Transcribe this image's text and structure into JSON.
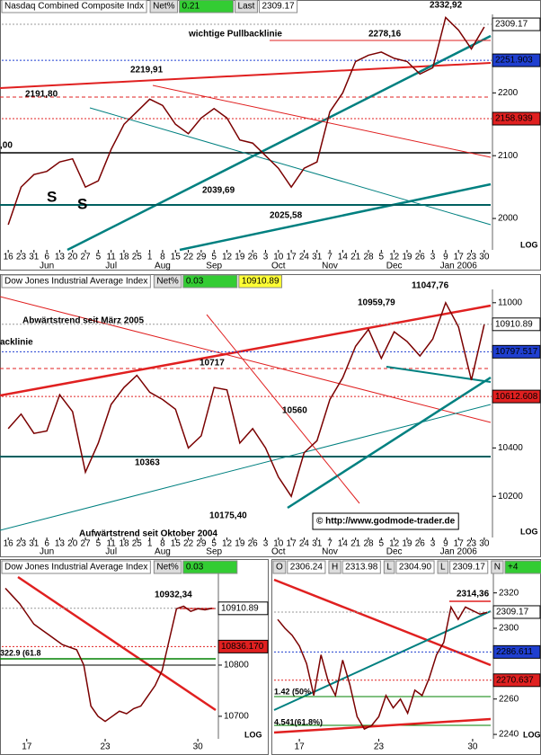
{
  "chart_data": [
    {
      "type": "line",
      "header": [
        "Nasdaq Combined Composite Indx",
        "Net%",
        "0.21",
        "Last",
        "2309.17"
      ],
      "header_colors": [
        "#ffffff",
        "#dddddd",
        "#33cc33",
        "#dddddd",
        "#ffffff"
      ],
      "categories": [
        "16",
        "23",
        "31",
        "6",
        "13",
        "20",
        "27",
        "5",
        "11",
        "18",
        "25",
        "1",
        "8",
        "15",
        "22",
        "29",
        "5",
        "12",
        "19",
        "26",
        "3",
        "10",
        "17",
        "24",
        "31",
        "7",
        "14",
        "21",
        "28",
        "5",
        "12",
        "19",
        "26",
        "3",
        "9",
        "17",
        "23",
        "30"
      ],
      "months": [
        null,
        null,
        null,
        "Jun",
        null,
        null,
        null,
        null,
        "Jul",
        null,
        null,
        null,
        "Aug",
        null,
        null,
        null,
        "Sep",
        null,
        null,
        null,
        null,
        "Oct",
        null,
        null,
        null,
        "Nov",
        null,
        null,
        null,
        null,
        "Dec",
        null,
        null,
        null,
        null,
        "Jan 2006",
        null,
        null
      ],
      "series": [
        {
          "color": "#7a0000",
          "values": [
            1990,
            2050,
            2070,
            2075,
            2090,
            2095,
            2050,
            2060,
            2110,
            2150,
            2170,
            2190,
            2180,
            2150,
            2135,
            2160,
            2175,
            2160,
            2125,
            2120,
            2100,
            2080,
            2050,
            2080,
            2090,
            2170,
            2200,
            2250,
            2260,
            2265,
            2255,
            2250,
            2230,
            2240,
            2320,
            2300,
            2270,
            2305
          ]
        }
      ],
      "ylim": [
        1950,
        2325
      ],
      "yticks": [
        2000,
        2100,
        2200
      ],
      "price_labels": [
        {
          "value": 2309.17,
          "color": "#ffffff"
        },
        {
          "value": 2251.903,
          "color": "#1f3fd0"
        },
        {
          "value": 2158.939,
          "color": "#e02020"
        }
      ],
      "annotations": [
        "2332,92",
        "2278,16",
        "wichtige Pullbacklinie",
        "2219,91",
        "2191,80",
        ",00",
        "S",
        "S",
        "2039,69",
        "2025,58",
        "LOG"
      ]
    },
    {
      "type": "line",
      "header": [
        "Dow Jones Industrial Average Index",
        "Net%",
        "0.03",
        "10910.89"
      ],
      "header_colors": [
        "#ffffff",
        "#dddddd",
        "#33cc33",
        "#ffff33"
      ],
      "categories": [
        "16",
        "23",
        "31",
        "6",
        "13",
        "20",
        "27",
        "5",
        "11",
        "18",
        "25",
        "1",
        "8",
        "15",
        "22",
        "29",
        "5",
        "12",
        "19",
        "26",
        "3",
        "10",
        "17",
        "24",
        "31",
        "7",
        "14",
        "21",
        "28",
        "5",
        "12",
        "19",
        "26",
        "3",
        "9",
        "17",
        "23",
        "30"
      ],
      "months": [
        null,
        null,
        null,
        "Jun",
        null,
        null,
        null,
        null,
        "Jul",
        null,
        null,
        null,
        "Aug",
        null,
        null,
        null,
        "Sep",
        null,
        null,
        null,
        null,
        "Oct",
        null,
        null,
        null,
        "Nov",
        null,
        null,
        null,
        null,
        "Dec",
        null,
        null,
        null,
        null,
        "Jan 2006",
        null,
        null
      ],
      "series": [
        {
          "color": "#7a0000",
          "values": [
            10480,
            10540,
            10460,
            10470,
            10620,
            10550,
            10300,
            10420,
            10580,
            10650,
            10700,
            10630,
            10600,
            10560,
            10400,
            10450,
            10650,
            10640,
            10420,
            10480,
            10400,
            10280,
            10200,
            10380,
            10430,
            10600,
            10690,
            10820,
            10890,
            10770,
            10880,
            10840,
            10780,
            10850,
            11000,
            10900,
            10680,
            10910
          ]
        }
      ],
      "ylim": [
        10030,
        11055
      ],
      "yticks": [
        10200,
        10400,
        11000
      ],
      "price_labels": [
        {
          "value": 10910.89,
          "color": "#ffffff"
        },
        {
          "value": 10797.517,
          "color": "#1f3fd0"
        },
        {
          "value": 10612.608,
          "color": "#e02020"
        }
      ],
      "annotations": [
        "Abwärtstrend seit März 2005",
        "acklinie",
        "10959,79",
        "11047,76",
        "10717",
        "10560",
        "10363",
        "10175,40",
        "Aufwärtstrend seit Oktober 2004",
        "© http://www.godmode-trader.de",
        "LOG"
      ]
    },
    {
      "type": "line",
      "header": [
        "Dow Jones Industrial Average Index",
        "Net%",
        "0.03"
      ],
      "header_colors": [
        "#ffffff",
        "#dddddd",
        "#33cc33"
      ],
      "categories": [
        null,
        null,
        null,
        "17",
        null,
        null,
        null,
        null,
        null,
        null,
        null,
        null,
        null,
        null,
        "23",
        null,
        null,
        null,
        null,
        null,
        null,
        null,
        null,
        null,
        null,
        null,
        null,
        "30",
        null,
        null
      ],
      "series": [
        {
          "color": "#7a0000",
          "values": [
            10950,
            10935,
            10920,
            10900,
            10880,
            10870,
            10860,
            10850,
            10840,
            10835,
            10830,
            10800,
            10720,
            10700,
            10690,
            10700,
            10710,
            10705,
            10715,
            10720,
            10740,
            10760,
            10790,
            10850,
            10910,
            10915,
            10905,
            10910,
            10908,
            10911
          ]
        }
      ],
      "ylim": [
        10656,
        10979
      ],
      "yticks": [
        10700,
        10800
      ],
      "price_labels": [
        {
          "value": 10910.89,
          "color": "#ffffff"
        },
        {
          "value": 10836.17,
          "label": "10836.170",
          "color": "#e02020"
        }
      ],
      "annotations": [
        "10932,34",
        "322.9 (61.8",
        "LOG"
      ]
    },
    {
      "type": "line",
      "header": [
        "O",
        "2306.24",
        "H",
        "2313.98",
        "L",
        "2304.90",
        "L",
        "2309.17",
        "N",
        "+4"
      ],
      "header_colors": [
        "#dddddd",
        "#ffffff",
        "#dddddd",
        "#ffffff",
        "#dddddd",
        "#ffffff",
        "#dddddd",
        "#ffffff",
        "#dddddd",
        "#33cc33"
      ],
      "categories": [
        null,
        null,
        null,
        "17",
        null,
        null,
        null,
        null,
        null,
        null,
        null,
        null,
        null,
        null,
        "23",
        null,
        null,
        null,
        null,
        null,
        null,
        null,
        null,
        null,
        null,
        null,
        null,
        "30",
        null,
        null
      ],
      "series": [
        {
          "color": "#7a0000",
          "values": [
            2305,
            2300,
            2296,
            2290,
            2280,
            2262,
            2285,
            2270,
            2262,
            2282,
            2268,
            2250,
            2243,
            2245,
            2250,
            2262,
            2255,
            2260,
            2252,
            2265,
            2262,
            2272,
            2285,
            2292,
            2312,
            2305,
            2312,
            2310,
            2308,
            2309
          ]
        }
      ],
      "ylim": [
        2237.5,
        2331
      ],
      "yticks": [
        2240,
        2260,
        2300,
        2320
      ],
      "price_labels": [
        {
          "value": 2309.17,
          "color": "#ffffff"
        },
        {
          "value": 2286.611,
          "color": "#1f3fd0"
        },
        {
          "value": 2270.637,
          "color": "#e02020"
        }
      ],
      "annotations": [
        "2314,36",
        "1.42 (50%",
        "4.541(61.8%)",
        "LOG"
      ]
    }
  ]
}
